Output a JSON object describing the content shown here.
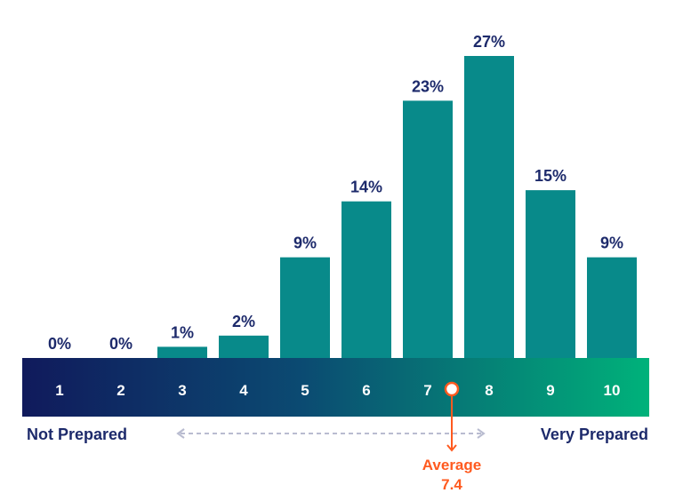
{
  "chart_data": {
    "type": "bar",
    "categories": [
      "1",
      "2",
      "3",
      "4",
      "5",
      "6",
      "7",
      "8",
      "9",
      "10"
    ],
    "values": [
      0,
      0,
      1,
      2,
      9,
      14,
      23,
      27,
      15,
      9
    ],
    "value_labels": [
      "0%",
      "0%",
      "1%",
      "2%",
      "9%",
      "14%",
      "23%",
      "27%",
      "15%",
      "9%"
    ],
    "ylim": [
      0,
      27
    ],
    "grid": false,
    "scale": {
      "left_label": "Not Prepared",
      "right_label": "Very Prepared",
      "gradient": [
        "#101a5c",
        "#00b27a"
      ]
    },
    "average": {
      "label": "Average",
      "value_text": "7.4",
      "value": 7.4
    },
    "colors": {
      "bar": "#088a8a",
      "value_text": "#1d2a6b",
      "accent": "#ff5a1f",
      "arrow_dashes": "#b9bcd0"
    }
  }
}
